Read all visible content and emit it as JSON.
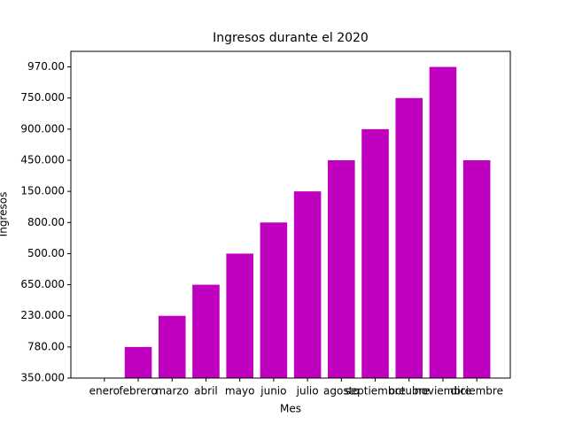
{
  "chart_data": {
    "type": "bar",
    "title": "Ingresos durante el 2020",
    "x_label": "Mes",
    "y_label": "Ingresos",
    "categories": [
      "enero",
      "febrero",
      "marzo",
      "abril",
      "mayo",
      "junio",
      "julio",
      "agosto",
      "septiembre",
      "octubre",
      "noviembre",
      "diciembre"
    ],
    "values": [
      0,
      1,
      2,
      3,
      4,
      5,
      6,
      7,
      8,
      9,
      10,
      7
    ],
    "color": "#bf00bf",
    "ylim": [
      0,
      10.5
    ],
    "yticks": [
      {
        "value": 0,
        "label": "350.000"
      },
      {
        "value": 1,
        "label": "780.00"
      },
      {
        "value": 2,
        "label": "230.000"
      },
      {
        "value": 3,
        "label": "650.000"
      },
      {
        "value": 4,
        "label": "500.00"
      },
      {
        "value": 5,
        "label": "800.00"
      },
      {
        "value": 6,
        "label": "150.000"
      },
      {
        "value": 7,
        "label": "450.000"
      },
      {
        "value": 8,
        "label": "900.000"
      },
      {
        "value": 9,
        "label": "750.000"
      },
      {
        "value": 10,
        "label": "970.00"
      }
    ],
    "grid": false
  }
}
